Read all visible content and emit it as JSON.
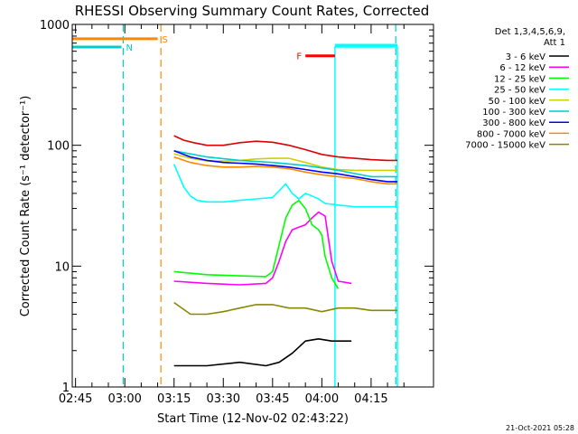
{
  "chart_data": {
    "type": "line",
    "title": "RHESSI Observing Summary Count Rates, Corrected",
    "xlabel": "Start Time (12-Nov-02 02:43:22)",
    "ylabel": "Corrected Count Rate (s⁻¹ detector⁻¹)",
    "yscale": "log",
    "ylim": [
      1,
      1000
    ],
    "xlim_minutes": [
      -1,
      109
    ],
    "x_ticks": [
      {
        "label": "02:45",
        "min": 0
      },
      {
        "label": "03:00",
        "min": 15
      },
      {
        "label": "03:15",
        "min": 30
      },
      {
        "label": "03:30",
        "min": 45
      },
      {
        "label": "03:45",
        "min": 60
      },
      {
        "label": "04:00",
        "min": 75
      },
      {
        "label": "04:15",
        "min": 90
      }
    ],
    "y_ticks": [
      {
        "label": "1",
        "v": 1
      },
      {
        "label": "10",
        "v": 10
      },
      {
        "label": "100",
        "v": 100
      },
      {
        "label": "1000",
        "v": 1000
      }
    ],
    "legend_header": [
      "Det 1,3,4,5,6,9,",
      "Att 1"
    ],
    "legend_position": "right",
    "series": [
      {
        "name": "3 - 6 keV",
        "color": "#000000",
        "x": [
          30,
          40,
          50,
          58,
          62,
          66,
          70,
          74,
          78,
          84
        ],
        "y": [
          1.5,
          1.5,
          1.6,
          1.5,
          1.6,
          1.9,
          2.4,
          2.5,
          2.4,
          2.4
        ]
      },
      {
        "name": "6 - 12 keV",
        "color": "#ff00ff",
        "x": [
          30,
          40,
          50,
          58,
          60,
          62,
          64,
          66,
          68,
          70,
          72,
          74,
          76,
          78,
          80,
          84
        ],
        "y": [
          7.5,
          7.2,
          7.0,
          7.2,
          8.0,
          11,
          16,
          20,
          21,
          22,
          25,
          28,
          26,
          11,
          7.5,
          7.2
        ]
      },
      {
        "name": "12 - 25 keV",
        "color": "#00ff00",
        "x": [
          30,
          40,
          50,
          58,
          60,
          62,
          64,
          66,
          68,
          70,
          72,
          74,
          75,
          76,
          78,
          80
        ],
        "y": [
          9,
          8.5,
          8.3,
          8.2,
          9,
          15,
          25,
          32,
          35,
          30,
          22,
          20,
          18,
          12,
          8,
          6.5
        ]
      },
      {
        "name": "25 - 50 keV",
        "color": "#00ffff",
        "x": [
          30,
          31,
          33,
          35,
          37,
          40,
          45,
          50,
          55,
          60,
          62,
          64,
          66,
          68,
          70,
          72,
          74,
          76,
          80,
          85,
          90,
          95,
          98
        ],
        "y": [
          70,
          60,
          45,
          38,
          35,
          34,
          34,
          35,
          36,
          37,
          42,
          48,
          40,
          36,
          40,
          38,
          36,
          33,
          32,
          31,
          31,
          31,
          31
        ]
      },
      {
        "name": "50 - 100 keV",
        "color": "#d0d000",
        "x": [
          30,
          35,
          40,
          45,
          50,
          55,
          60,
          65,
          70,
          75,
          80,
          85,
          90,
          95,
          98
        ],
        "y": [
          85,
          78,
          74,
          74,
          75,
          77,
          78,
          78,
          72,
          66,
          63,
          62,
          62,
          62,
          62
        ]
      },
      {
        "name": "100 - 300 keV",
        "color": "#00cccc",
        "x": [
          30,
          40,
          50,
          60,
          70,
          80,
          90,
          98
        ],
        "y": [
          90,
          80,
          75,
          72,
          68,
          62,
          55,
          55
        ]
      },
      {
        "name": "300 - 800 keV",
        "color": "#0000ff",
        "x": [
          30,
          35,
          40,
          45,
          50,
          55,
          60,
          65,
          70,
          75,
          80,
          85,
          90,
          95,
          98
        ],
        "y": [
          90,
          80,
          75,
          72,
          71,
          70,
          68,
          66,
          63,
          60,
          58,
          55,
          52,
          50,
          50
        ]
      },
      {
        "name": "800 - 7000 keV",
        "color": "#ff8800",
        "x": [
          30,
          35,
          40,
          45,
          50,
          55,
          60,
          65,
          70,
          75,
          80,
          85,
          90,
          95,
          98
        ],
        "y": [
          80,
          72,
          68,
          66,
          66,
          67,
          66,
          64,
          60,
          57,
          55,
          53,
          50,
          48,
          48
        ]
      },
      {
        "name": "7000 - 15000 keV",
        "color": "#888800",
        "x": [
          30,
          35,
          40,
          45,
          50,
          55,
          60,
          65,
          70,
          75,
          80,
          85,
          90,
          95,
          98
        ],
        "y": [
          5.0,
          4.0,
          4.0,
          4.2,
          4.5,
          4.8,
          4.8,
          4.5,
          4.5,
          4.2,
          4.5,
          4.5,
          4.3,
          4.3,
          4.3
        ]
      },
      {
        "name": "",
        "color": "#dd0000",
        "x": [
          30,
          33,
          36,
          40,
          45,
          50,
          55,
          60,
          65,
          70,
          75,
          80,
          85,
          90,
          95,
          98
        ],
        "y": [
          120,
          110,
          105,
          100,
          100,
          105,
          108,
          106,
          100,
          92,
          84,
          80,
          78,
          76,
          75,
          75
        ]
      }
    ],
    "annotations": [
      {
        "label": "N",
        "color": "#00cccc",
        "x0": -1,
        "x1": 14,
        "y": 650
      },
      {
        "label": "S",
        "color": "#ff8800",
        "x0": -1,
        "x1": 25,
        "y": 760
      },
      {
        "label": "F",
        "color": "#ff0000",
        "x0": 70,
        "x1": 79,
        "y": 550
      }
    ],
    "event_lines": [
      {
        "x": 14.5,
        "color": "#00cccc",
        "style": "dashed"
      },
      {
        "x": 26,
        "color": "#ff8800",
        "style": "dashed"
      },
      {
        "x": 97.5,
        "color": "#00cccc",
        "style": "dashed"
      }
    ],
    "saa_boxes": [
      {
        "x0": 79,
        "x1": 98,
        "y": 650,
        "color": "#00ffff"
      }
    ],
    "footer": "21-Oct-2021 05:28"
  }
}
